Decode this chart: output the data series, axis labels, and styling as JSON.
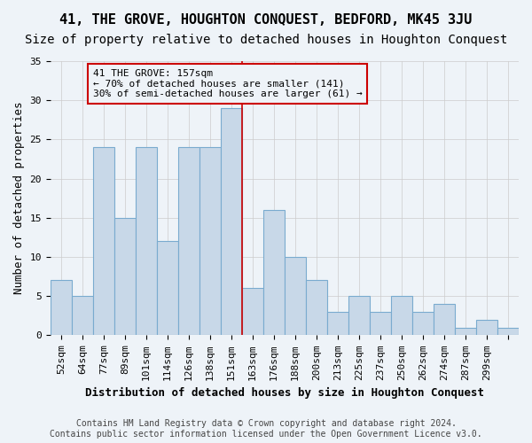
{
  "title": "41, THE GROVE, HOUGHTON CONQUEST, BEDFORD, MK45 3JU",
  "subtitle": "Size of property relative to detached houses in Houghton Conquest",
  "xlabel": "Distribution of detached houses by size in Houghton Conquest",
  "ylabel": "Number of detached properties",
  "bar_values": [
    7,
    5,
    24,
    15,
    24,
    12,
    24,
    24,
    29,
    6,
    16,
    10,
    7,
    3,
    5,
    3,
    5,
    3,
    4,
    1,
    2,
    1
  ],
  "categories": [
    "52sqm",
    "64sqm",
    "77sqm",
    "89sqm",
    "101sqm",
    "114sqm",
    "126sqm",
    "138sqm",
    "151sqm",
    "163sqm",
    "176sqm",
    "188sqm",
    "200sqm",
    "213sqm",
    "225sqm",
    "237sqm",
    "250sqm",
    "262sqm",
    "274sqm",
    "287sqm",
    "299sqm",
    ""
  ],
  "bar_color": "#c8d8e8",
  "bar_edge_color": "#7aabcf",
  "grid_color": "#cccccc",
  "background_color": "#eef3f8",
  "vline_color": "#cc0000",
  "annotation_text": "41 THE GROVE: 157sqm\n← 70% of detached houses are smaller (141)\n30% of semi-detached houses are larger (61) →",
  "annotation_box_color": "#cc0000",
  "ylim": [
    0,
    35
  ],
  "yticks": [
    0,
    5,
    10,
    15,
    20,
    25,
    30,
    35
  ],
  "footer_text": "Contains HM Land Registry data © Crown copyright and database right 2024.\nContains public sector information licensed under the Open Government Licence v3.0.",
  "title_fontsize": 11,
  "subtitle_fontsize": 10,
  "xlabel_fontsize": 9,
  "ylabel_fontsize": 9,
  "tick_fontsize": 8,
  "annotation_fontsize": 8,
  "footer_fontsize": 7
}
